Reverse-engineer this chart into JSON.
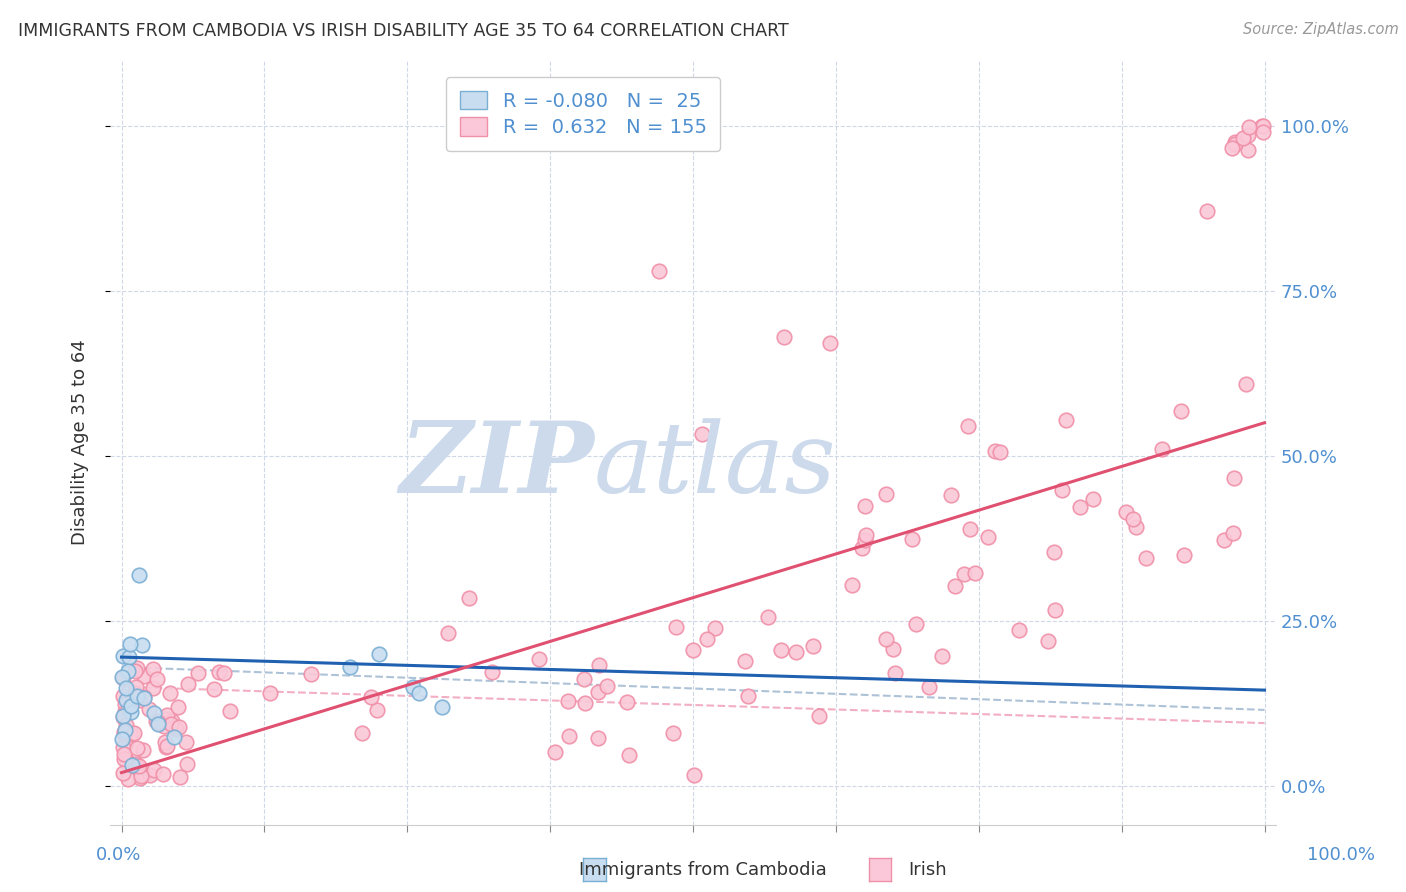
{
  "title": "IMMIGRANTS FROM CAMBODIA VS IRISH DISABILITY AGE 35 TO 64 CORRELATION CHART",
  "source": "Source: ZipAtlas.com",
  "ylabel": "Disability Age 35 to 64",
  "legend_label1": "Immigrants from Cambodia",
  "legend_label2": "Irish",
  "R1": -0.08,
  "N1": 25,
  "R2": 0.632,
  "N2": 155,
  "color_cambodia_face": "#c8ddf0",
  "color_cambodia_edge": "#7aafd4",
  "color_irish_face": "#fac8d8",
  "color_irish_edge": "#f090a8",
  "color_line_cambodia": "#2060b0",
  "color_line_irish": "#e05070",
  "color_dashed": "#a0b8d0",
  "color_dashed_irish": "#f0a0b8",
  "color_grid": "#d0d8e8",
  "color_text": "#333333",
  "color_axis": "#5090d0",
  "color_watermark": "#ccdaec",
  "cam_slope": -0.05,
  "cam_intercept": 19.5,
  "irish_slope": 0.53,
  "irish_intercept": 2.0,
  "dash_cam_slope": -0.065,
  "dash_cam_intercept": 18.0,
  "dash_irish_slope": -0.055,
  "dash_irish_intercept": 15.0
}
